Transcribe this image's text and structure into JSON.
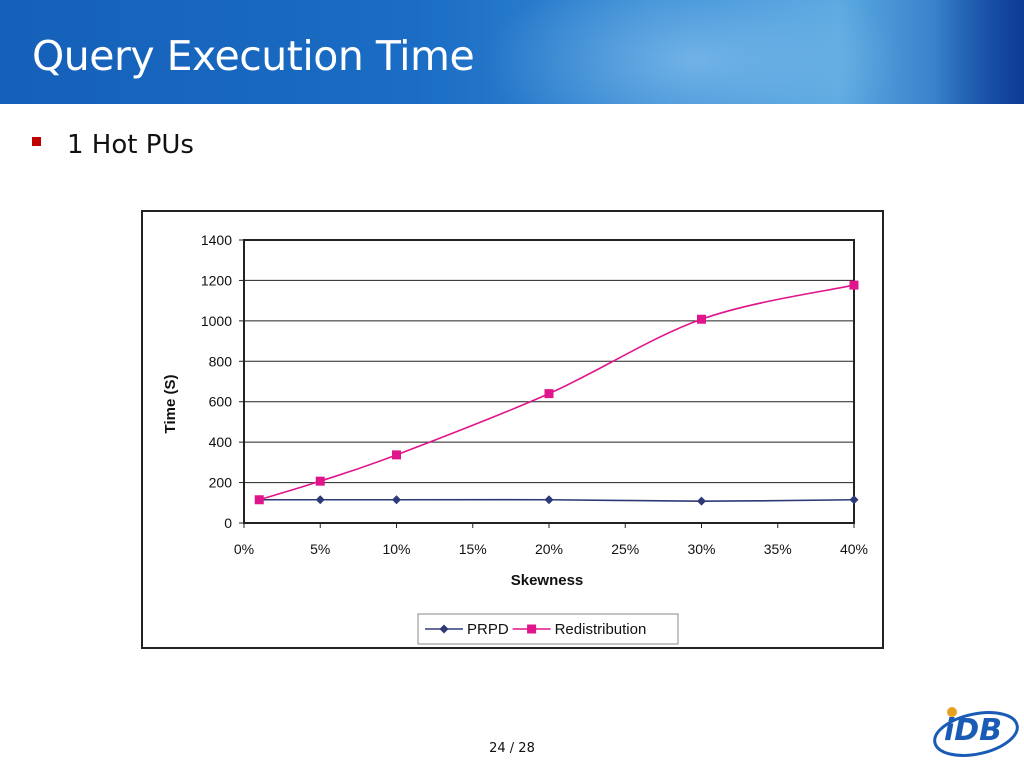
{
  "slide": {
    "title": "Query Execution Time",
    "bullet": "1 Hot PUs",
    "page_number": "24 / 28"
  },
  "logo": {
    "text": "iDB",
    "icon": "idb-logo",
    "color": "#1a5cb5"
  },
  "colors": {
    "prpd": "#2e3a78",
    "redistribution": "#e0158c",
    "bullet": "#c00000"
  },
  "chart_data": {
    "type": "line",
    "title": "",
    "xlabel": "Skewness",
    "ylabel": "Time (S)",
    "ylim": [
      0,
      1400
    ],
    "xlim": [
      0,
      40
    ],
    "yticks": [
      "0",
      "200",
      "400",
      "600",
      "800",
      "1000",
      "1200",
      "1400"
    ],
    "xticks": [
      "0%",
      "5%",
      "10%",
      "15%",
      "20%",
      "25%",
      "30%",
      "35%",
      "40%"
    ],
    "grid": "horizontal",
    "legend_position": "bottom",
    "series": [
      {
        "name": "PRPD",
        "marker": "diamond",
        "x": [
          1,
          5,
          10,
          20,
          30,
          40
        ],
        "values": [
          115,
          115,
          115,
          115,
          108,
          115
        ]
      },
      {
        "name": "Redistribution",
        "marker": "square",
        "x": [
          1,
          5,
          10,
          20,
          30,
          40
        ],
        "values": [
          115,
          207,
          337,
          640,
          1008,
          1177
        ]
      }
    ]
  }
}
